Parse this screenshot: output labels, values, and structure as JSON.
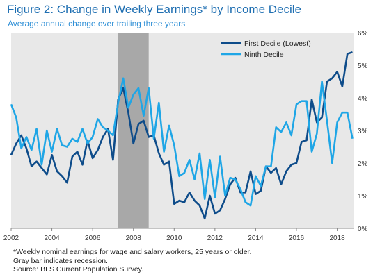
{
  "header": {
    "title": "Figure 2: Change in Weekly Earnings* by Income Decile",
    "subtitle": "Average annual change over trailing three years"
  },
  "notes": [
    "*Weekly nominal earnings for wage and salary workers, 25 years or older.",
    "Gray bar indicates recession.",
    "Source: BLS Current Population Survey."
  ],
  "colors": {
    "first_decile": "#0e4c8a",
    "ninth_decile": "#1fa6e6",
    "recession": "#a8a8a8",
    "plot_bg": "#e8e8e8",
    "title": "#1f6fb2"
  },
  "chart_data": {
    "type": "line",
    "title": "Figure 2: Change in Weekly Earnings* by Income Decile",
    "subtitle": "Average annual change over trailing three years",
    "xlabel": "",
    "ylabel": "",
    "xlim": [
      2002,
      2018.8
    ],
    "ylim": [
      0,
      6
    ],
    "y_axis_side": "right",
    "x_ticks": [
      2002,
      2004,
      2006,
      2008,
      2010,
      2012,
      2014,
      2016,
      2018
    ],
    "x_tick_labels": [
      "2002",
      "2004",
      "2006",
      "2008",
      "2010",
      "2012",
      "2014",
      "2016",
      "2018"
    ],
    "y_ticks": [
      0,
      1,
      2,
      3,
      4,
      5,
      6
    ],
    "y_tick_labels": [
      "0%",
      "1%",
      "2%",
      "3%",
      "4%",
      "5%",
      "6%"
    ],
    "grid": false,
    "legend_position": "top-right",
    "recession": [
      2007.25,
      2008.75
    ],
    "series": [
      {
        "name": "First Decile (Lowest)",
        "color": "#0e4c8a",
        "points": [
          [
            2002.0,
            2.25
          ],
          [
            2002.25,
            2.6
          ],
          [
            2002.5,
            2.85
          ],
          [
            2002.75,
            2.45
          ],
          [
            2003.0,
            1.9
          ],
          [
            2003.25,
            2.05
          ],
          [
            2003.5,
            1.85
          ],
          [
            2003.75,
            1.65
          ],
          [
            2004.0,
            2.25
          ],
          [
            2004.25,
            1.75
          ],
          [
            2004.5,
            1.6
          ],
          [
            2004.75,
            1.4
          ],
          [
            2005.0,
            2.2
          ],
          [
            2005.25,
            2.35
          ],
          [
            2005.5,
            1.95
          ],
          [
            2005.75,
            2.7
          ],
          [
            2006.0,
            2.15
          ],
          [
            2006.25,
            2.4
          ],
          [
            2006.5,
            2.8
          ],
          [
            2006.75,
            3.05
          ],
          [
            2007.0,
            2.1
          ],
          [
            2007.25,
            3.95
          ],
          [
            2007.5,
            4.3
          ],
          [
            2007.75,
            3.55
          ],
          [
            2008.0,
            2.6
          ],
          [
            2008.25,
            3.2
          ],
          [
            2008.5,
            3.3
          ],
          [
            2008.75,
            2.8
          ],
          [
            2009.0,
            2.85
          ],
          [
            2009.25,
            2.3
          ],
          [
            2009.5,
            1.95
          ],
          [
            2009.75,
            2.05
          ],
          [
            2010.0,
            0.75
          ],
          [
            2010.25,
            0.85
          ],
          [
            2010.5,
            0.8
          ],
          [
            2010.75,
            1.1
          ],
          [
            2011.0,
            0.85
          ],
          [
            2011.25,
            0.7
          ],
          [
            2011.5,
            0.3
          ],
          [
            2011.75,
            1.0
          ],
          [
            2012.0,
            0.45
          ],
          [
            2012.25,
            0.55
          ],
          [
            2012.5,
            0.9
          ],
          [
            2012.75,
            1.35
          ],
          [
            2013.0,
            1.55
          ],
          [
            2013.25,
            1.1
          ],
          [
            2013.5,
            1.1
          ],
          [
            2013.75,
            1.75
          ],
          [
            2014.0,
            1.05
          ],
          [
            2014.25,
            1.15
          ],
          [
            2014.5,
            1.9
          ],
          [
            2014.75,
            1.7
          ],
          [
            2015.0,
            1.85
          ],
          [
            2015.25,
            1.35
          ],
          [
            2015.5,
            1.75
          ],
          [
            2015.75,
            1.95
          ],
          [
            2016.0,
            2.0
          ],
          [
            2016.25,
            2.65
          ],
          [
            2016.5,
            2.7
          ],
          [
            2016.75,
            3.95
          ],
          [
            2017.0,
            3.25
          ],
          [
            2017.25,
            3.4
          ],
          [
            2017.5,
            4.5
          ],
          [
            2017.75,
            4.6
          ],
          [
            2018.0,
            4.8
          ],
          [
            2018.25,
            4.35
          ],
          [
            2018.5,
            5.35
          ],
          [
            2018.75,
            5.4
          ]
        ]
      },
      {
        "name": "Ninth Decile",
        "color": "#1fa6e6",
        "points": [
          [
            2002.0,
            3.8
          ],
          [
            2002.25,
            3.4
          ],
          [
            2002.5,
            2.45
          ],
          [
            2002.75,
            2.8
          ],
          [
            2003.0,
            2.4
          ],
          [
            2003.25,
            3.05
          ],
          [
            2003.5,
            1.95
          ],
          [
            2003.75,
            3.0
          ],
          [
            2004.0,
            2.35
          ],
          [
            2004.25,
            3.05
          ],
          [
            2004.5,
            2.55
          ],
          [
            2004.75,
            2.5
          ],
          [
            2005.0,
            2.75
          ],
          [
            2005.25,
            2.65
          ],
          [
            2005.5,
            3.05
          ],
          [
            2005.75,
            2.6
          ],
          [
            2006.0,
            2.8
          ],
          [
            2006.25,
            3.35
          ],
          [
            2006.5,
            3.1
          ],
          [
            2006.75,
            3.0
          ],
          [
            2007.0,
            2.85
          ],
          [
            2007.25,
            3.85
          ],
          [
            2007.5,
            4.6
          ],
          [
            2007.75,
            3.7
          ],
          [
            2008.0,
            4.1
          ],
          [
            2008.25,
            4.3
          ],
          [
            2008.5,
            3.45
          ],
          [
            2008.75,
            4.3
          ],
          [
            2009.0,
            2.75
          ],
          [
            2009.25,
            3.85
          ],
          [
            2009.5,
            2.35
          ],
          [
            2009.75,
            3.15
          ],
          [
            2010.0,
            2.55
          ],
          [
            2010.25,
            1.6
          ],
          [
            2010.5,
            1.7
          ],
          [
            2010.75,
            2.1
          ],
          [
            2011.0,
            1.5
          ],
          [
            2011.25,
            2.3
          ],
          [
            2011.5,
            0.9
          ],
          [
            2011.75,
            2.1
          ],
          [
            2012.0,
            0.95
          ],
          [
            2012.25,
            2.2
          ],
          [
            2012.5,
            1.0
          ],
          [
            2012.75,
            1.55
          ],
          [
            2013.0,
            1.5
          ],
          [
            2013.25,
            1.2
          ],
          [
            2013.5,
            0.8
          ],
          [
            2013.75,
            0.7
          ],
          [
            2014.0,
            1.6
          ],
          [
            2014.25,
            1.3
          ],
          [
            2014.5,
            1.9
          ],
          [
            2014.75,
            1.9
          ],
          [
            2015.0,
            3.1
          ],
          [
            2015.25,
            2.95
          ],
          [
            2015.5,
            3.25
          ],
          [
            2015.75,
            2.85
          ],
          [
            2016.0,
            3.8
          ],
          [
            2016.25,
            3.9
          ],
          [
            2016.5,
            3.9
          ],
          [
            2016.75,
            2.35
          ],
          [
            2017.0,
            2.9
          ],
          [
            2017.25,
            4.5
          ],
          [
            2017.5,
            3.3
          ],
          [
            2017.75,
            2.0
          ],
          [
            2018.0,
            3.25
          ],
          [
            2018.25,
            3.55
          ],
          [
            2018.5,
            3.55
          ],
          [
            2018.75,
            2.75
          ]
        ]
      }
    ]
  }
}
